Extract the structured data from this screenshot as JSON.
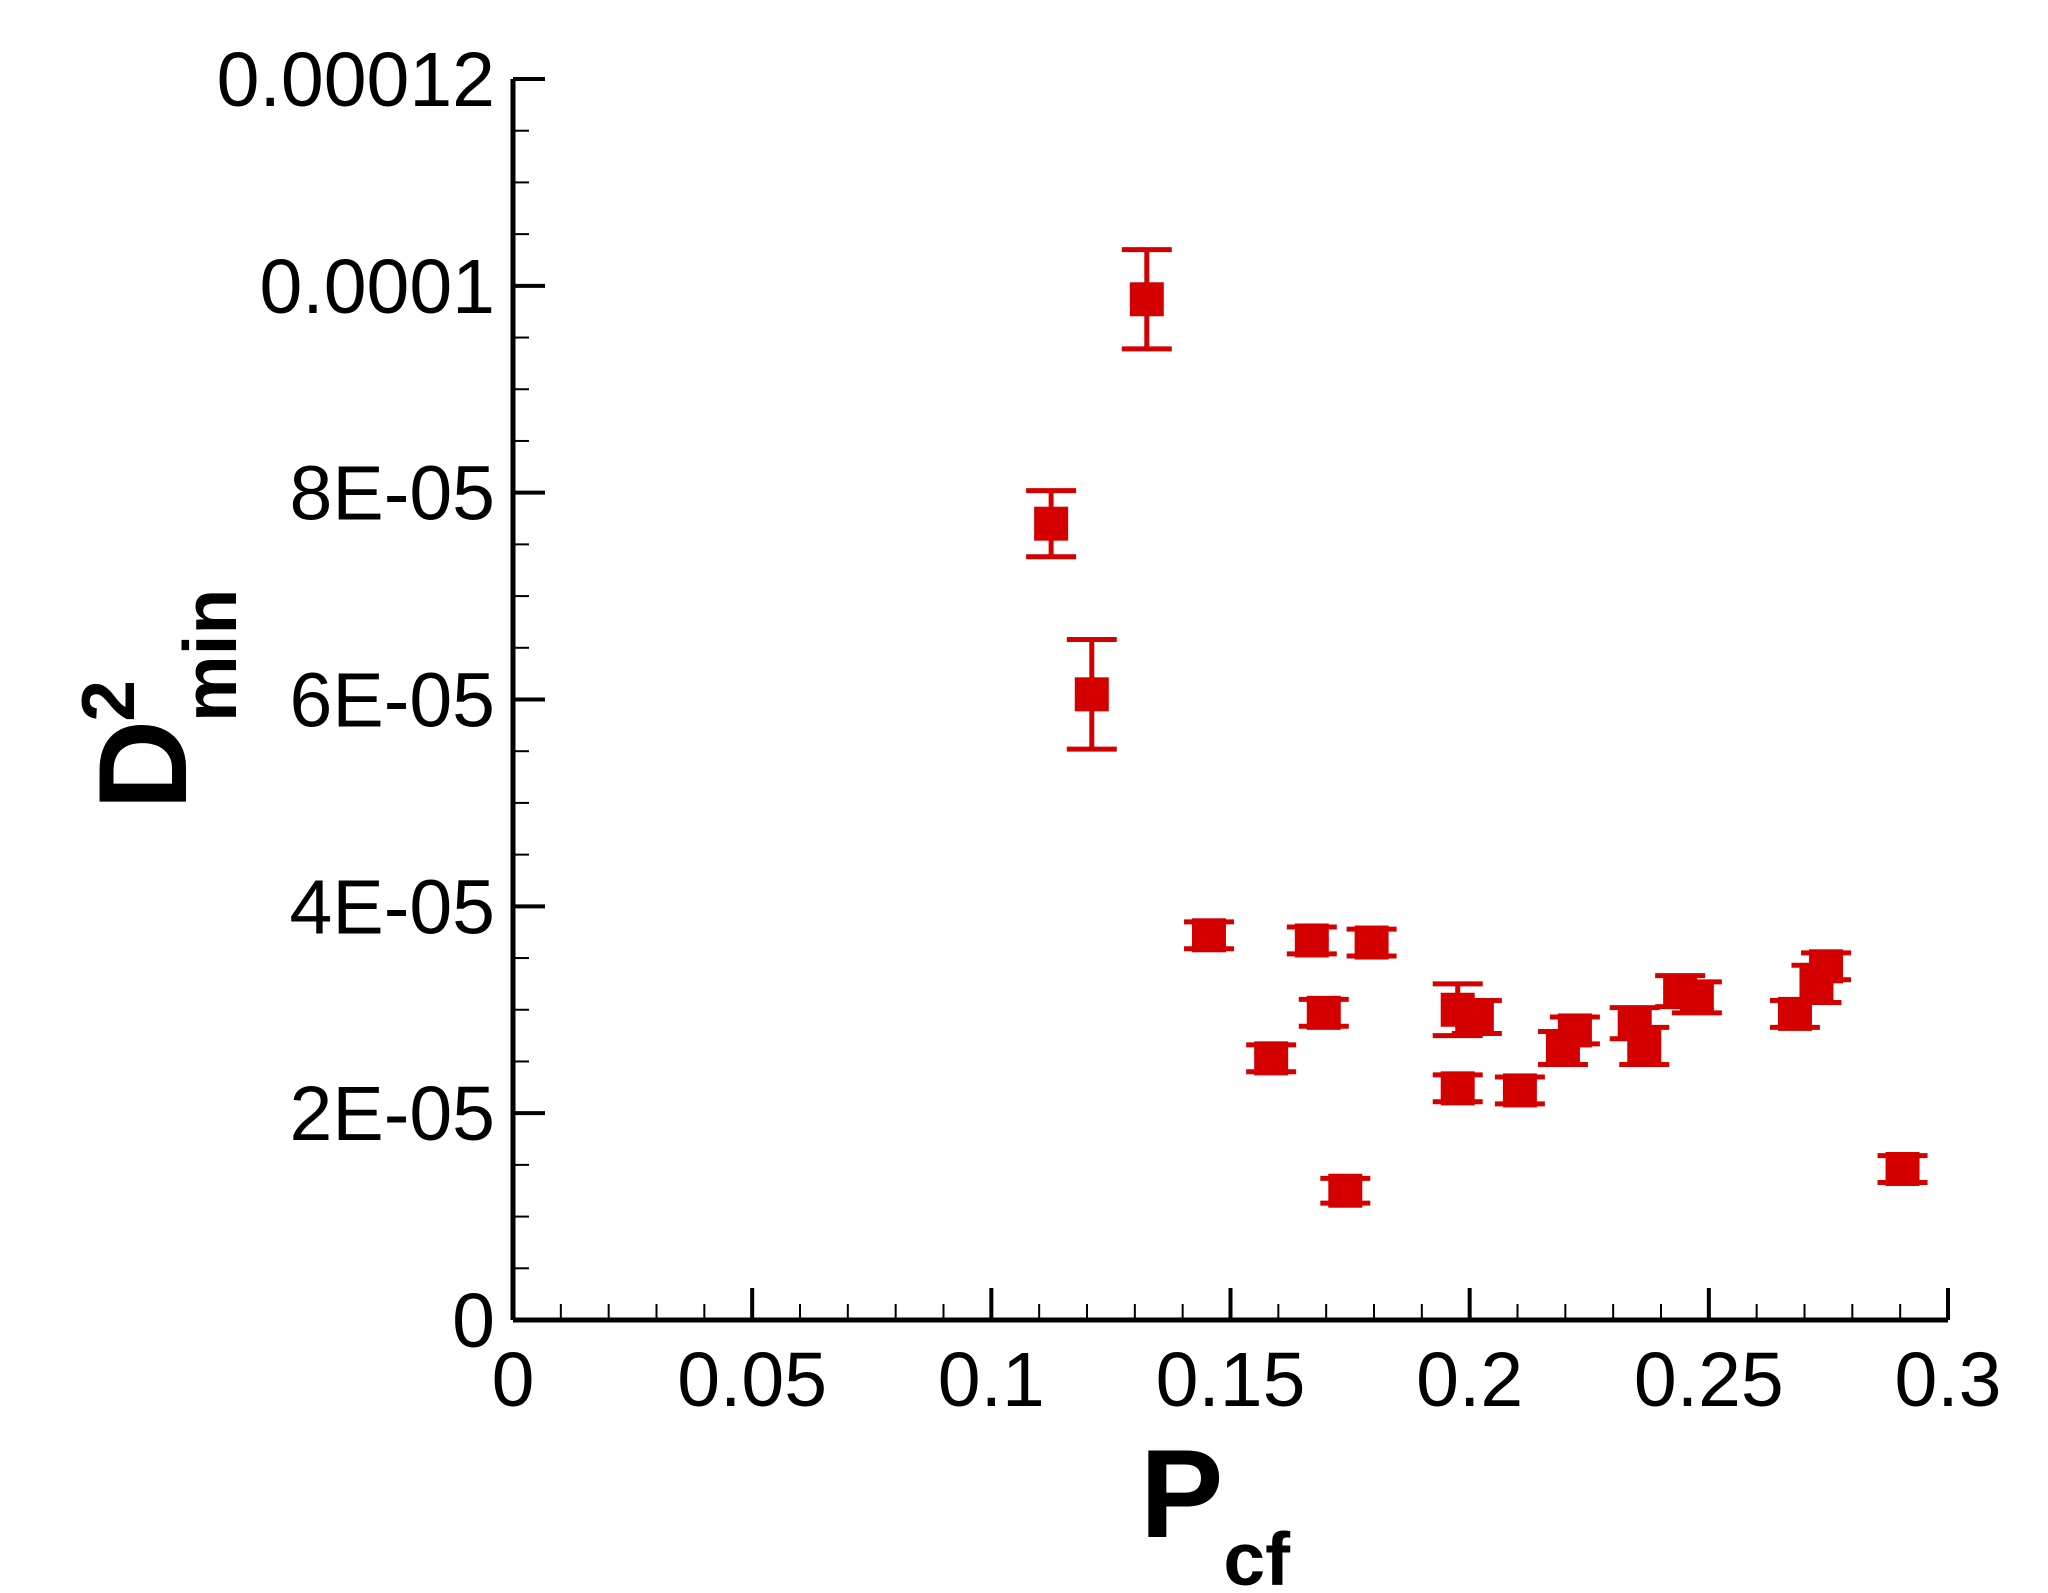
{
  "chart_data": {
    "type": "scatter",
    "xlabel": {
      "main": "P",
      "sub": "cf"
    },
    "ylabel": {
      "main": "D",
      "sup": "2",
      "sub": "min"
    },
    "xlim": [
      0,
      0.3
    ],
    "ylim": [
      0,
      0.00012
    ],
    "x_ticks": [
      0,
      0.05,
      0.1,
      0.15,
      0.2,
      0.25,
      0.3
    ],
    "x_tick_labels": [
      "0",
      "0.05",
      "0.1",
      "0.15",
      "0.2",
      "0.25",
      "0.3"
    ],
    "y_ticks": [
      0,
      2e-05,
      4e-05,
      6e-05,
      8e-05,
      0.0001,
      0.00012
    ],
    "y_tick_labels": [
      "0",
      "2E-05",
      "4E-05",
      "6E-05",
      "8E-05",
      "0.0001",
      "0.00012"
    ],
    "x_minor_step": 0.01,
    "y_minor_step": 5e-06,
    "grid": false,
    "marker": "square",
    "error_bars": true,
    "colors": {
      "series": "#d40000",
      "axis": "#000000",
      "background": "#ffffff"
    },
    "points": [
      {
        "x": 0.1125,
        "y": 7.7e-05,
        "err": 3.2e-06
      },
      {
        "x": 0.121,
        "y": 6.05e-05,
        "err": 5.3e-06
      },
      {
        "x": 0.1325,
        "y": 9.87e-05,
        "err": 4.8e-06
      },
      {
        "x": 0.1455,
        "y": 3.72e-05,
        "err": 1.3e-06
      },
      {
        "x": 0.1585,
        "y": 2.53e-05,
        "err": 1.3e-06
      },
      {
        "x": 0.167,
        "y": 3.67e-05,
        "err": 1.3e-06
      },
      {
        "x": 0.1695,
        "y": 2.97e-05,
        "err": 1.3e-06
      },
      {
        "x": 0.174,
        "y": 1.25e-05,
        "err": 1.2e-06
      },
      {
        "x": 0.1795,
        "y": 3.65e-05,
        "err": 1.3e-06
      },
      {
        "x": 0.1975,
        "y": 3e-05,
        "err": 2.5e-06
      },
      {
        "x": 0.1975,
        "y": 2.24e-05,
        "err": 1.3e-06
      },
      {
        "x": 0.2015,
        "y": 2.93e-05,
        "err": 1.6e-06
      },
      {
        "x": 0.2105,
        "y": 2.22e-05,
        "err": 1.3e-06
      },
      {
        "x": 0.2195,
        "y": 2.63e-05,
        "err": 1.6e-06
      },
      {
        "x": 0.222,
        "y": 2.8e-05,
        "err": 1.3e-06
      },
      {
        "x": 0.2345,
        "y": 2.87e-05,
        "err": 1.5e-06
      },
      {
        "x": 0.2365,
        "y": 2.65e-05,
        "err": 1.8e-06
      },
      {
        "x": 0.244,
        "y": 3.18e-05,
        "err": 1.5e-06
      },
      {
        "x": 0.2475,
        "y": 3.12e-05,
        "err": 1.5e-06
      },
      {
        "x": 0.268,
        "y": 2.96e-05,
        "err": 1.3e-06
      },
      {
        "x": 0.2725,
        "y": 3.25e-05,
        "err": 1.8e-06
      },
      {
        "x": 0.2745,
        "y": 3.42e-05,
        "err": 1.3e-06
      },
      {
        "x": 0.2905,
        "y": 1.46e-05,
        "err": 1.3e-06
      }
    ]
  }
}
